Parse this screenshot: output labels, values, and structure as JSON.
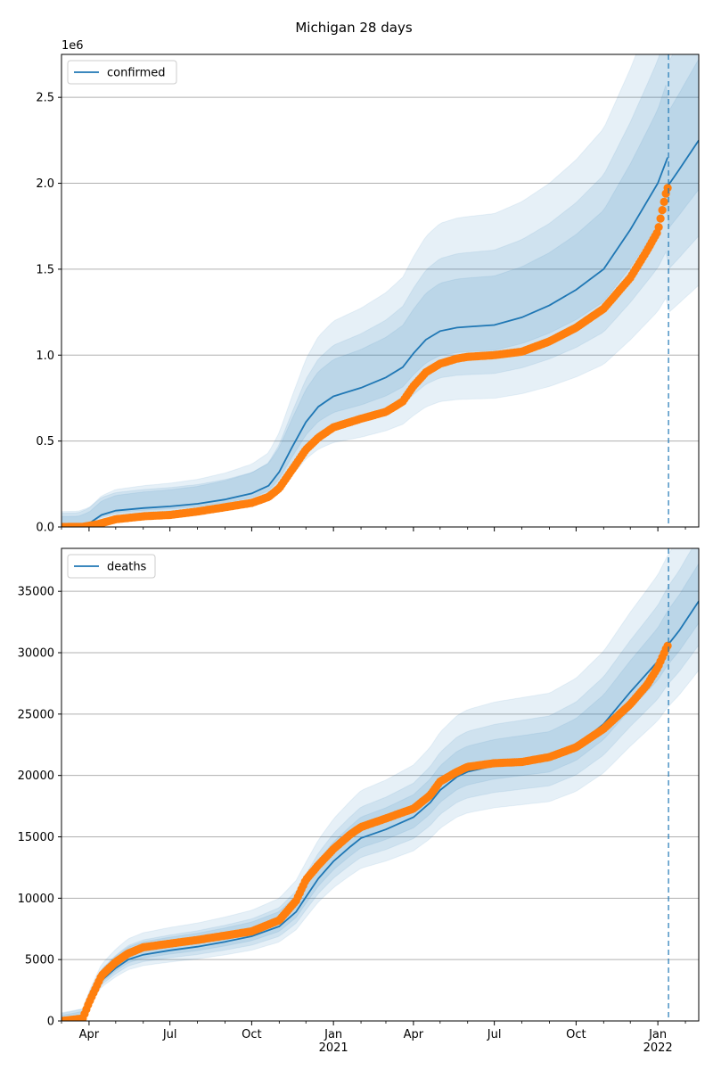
{
  "figure": {
    "title": "Michigan 28 days"
  },
  "chart_data": [
    {
      "type": "line",
      "legend": {
        "label": "confirmed",
        "placement": "top-left"
      },
      "y_multiplier_label": "1e6",
      "xlim": [
        "2020-03-01",
        "2022-02-16"
      ],
      "ylim": [
        0,
        2750000
      ],
      "yticks": [
        0.0,
        0.5,
        1.0,
        1.5,
        2.0,
        2.5
      ],
      "ytick_labels": [
        "0.0",
        "0.5",
        "1.0",
        "1.5",
        "2.0",
        "2.5"
      ],
      "xticks": [
        "2020-04-01",
        "2020-07-01",
        "2020-10-01",
        "2021-01-01",
        "2021-04-01",
        "2021-07-01",
        "2021-10-01",
        "2022-01-01"
      ],
      "grid": "y",
      "forecast_start": "2022-01-13",
      "colors": {
        "line": "#1f77b4",
        "points": "#ff7f0e",
        "band": "#1f77b4"
      },
      "model": {
        "x": [
          "2020-03-01",
          "2020-03-20",
          "2020-04-01",
          "2020-04-15",
          "2020-05-01",
          "2020-06-01",
          "2020-07-01",
          "2020-08-01",
          "2020-09-01",
          "2020-10-01",
          "2020-10-20",
          "2020-11-01",
          "2020-11-15",
          "2020-12-01",
          "2020-12-15",
          "2021-01-01",
          "2021-02-01",
          "2021-03-01",
          "2021-03-20",
          "2021-04-01",
          "2021-04-15",
          "2021-05-01",
          "2021-05-20",
          "2021-06-01",
          "2021-07-01",
          "2021-08-01",
          "2021-09-01",
          "2021-10-01",
          "2021-11-01",
          "2021-12-01",
          "2022-01-01",
          "2022-01-12"
        ],
        "y": [
          0,
          2000,
          20000,
          70000,
          95000,
          110000,
          120000,
          135000,
          160000,
          195000,
          240000,
          320000,
          460000,
          610000,
          700000,
          760000,
          810000,
          870000,
          930000,
          1010000,
          1090000,
          1140000,
          1160000,
          1165000,
          1175000,
          1220000,
          1290000,
          1380000,
          1500000,
          1730000,
          2000000,
          2150000
        ]
      },
      "forecast": {
        "x": [
          "2022-01-13",
          "2022-01-25",
          "2022-02-16"
        ],
        "y": [
          1990000,
          2080000,
          2250000
        ]
      },
      "bands": [
        {
          "offsets": [
            0.45,
            0.5
          ]
        },
        {
          "offsets": [
            0.3,
            0.33
          ]
        },
        {
          "offsets": [
            0.16,
            0.17
          ]
        }
      ],
      "observed": {
        "x": [
          "2020-03-01",
          "2020-03-25",
          "2020-04-10",
          "2020-05-01",
          "2020-06-01",
          "2020-07-01",
          "2020-08-01",
          "2020-09-01",
          "2020-10-01",
          "2020-10-20",
          "2020-11-01",
          "2020-11-15",
          "2020-12-01",
          "2020-12-15",
          "2021-01-01",
          "2021-02-01",
          "2021-03-01",
          "2021-03-20",
          "2021-04-01",
          "2021-04-15",
          "2021-05-01",
          "2021-05-20",
          "2021-06-01",
          "2021-07-01",
          "2021-08-01",
          "2021-09-01",
          "2021-10-01",
          "2021-11-01",
          "2021-12-01",
          "2021-12-20",
          "2022-01-01",
          "2022-01-05",
          "2022-01-10",
          "2022-01-13"
        ],
        "y": [
          0,
          1000,
          15000,
          45000,
          62000,
          70000,
          90000,
          115000,
          140000,
          175000,
          225000,
          330000,
          450000,
          520000,
          580000,
          630000,
          670000,
          730000,
          820000,
          900000,
          950000,
          980000,
          990000,
          1000000,
          1020000,
          1080000,
          1160000,
          1270000,
          1450000,
          1610000,
          1720000,
          1820000,
          1940000,
          1990000
        ]
      }
    },
    {
      "type": "line",
      "legend": {
        "label": "deaths",
        "placement": "top-left"
      },
      "xlim": [
        "2020-03-01",
        "2022-02-16"
      ],
      "ylim": [
        0,
        38500
      ],
      "yticks": [
        0,
        5000,
        10000,
        15000,
        20000,
        25000,
        30000,
        35000
      ],
      "ytick_labels": [
        "0",
        "5000",
        "10000",
        "15000",
        "20000",
        "25000",
        "30000",
        "35000"
      ],
      "xticks": [
        "2020-04-01",
        "2020-07-01",
        "2020-10-01",
        "2021-01-01",
        "2021-04-01",
        "2021-07-01",
        "2021-10-01",
        "2022-01-01"
      ],
      "xtick_labels": [
        [
          "Apr"
        ],
        [
          "Jul"
        ],
        [
          "Oct"
        ],
        [
          "Jan",
          "2021"
        ],
        [
          "Apr"
        ],
        [
          "Jul"
        ],
        [
          "Oct"
        ],
        [
          "Jan",
          "2022"
        ]
      ],
      "grid": "y",
      "forecast_start": "2022-01-13",
      "colors": {
        "line": "#1f77b4",
        "points": "#ff7f0e",
        "band": "#1f77b4"
      },
      "model": {
        "x": [
          "2020-03-01",
          "2020-03-25",
          "2020-04-01",
          "2020-04-15",
          "2020-05-01",
          "2020-05-15",
          "2020-06-01",
          "2020-07-01",
          "2020-08-01",
          "2020-09-01",
          "2020-10-01",
          "2020-11-01",
          "2020-11-20",
          "2020-12-01",
          "2020-12-15",
          "2021-01-01",
          "2021-01-20",
          "2021-02-01",
          "2021-03-01",
          "2021-04-01",
          "2021-04-20",
          "2021-05-01",
          "2021-05-20",
          "2021-06-01",
          "2021-07-01",
          "2021-08-01",
          "2021-09-01",
          "2021-10-01",
          "2021-11-01",
          "2021-12-01",
          "2022-01-01",
          "2022-01-12"
        ],
        "y": [
          0,
          300,
          1500,
          3300,
          4300,
          5000,
          5400,
          5750,
          6050,
          6450,
          6900,
          7700,
          8900,
          10100,
          11600,
          13000,
          14200,
          14900,
          15600,
          16600,
          17800,
          18800,
          19900,
          20300,
          20800,
          21100,
          21400,
          22400,
          24200,
          26800,
          29300,
          30600
        ]
      },
      "forecast": {
        "x": [
          "2022-01-13",
          "2022-01-25",
          "2022-02-16"
        ],
        "y": [
          30700,
          31800,
          34200
        ]
      },
      "bands": [
        {
          "offsets": [
            0.22,
            0.22
          ]
        },
        {
          "offsets": [
            0.14,
            0.14
          ]
        },
        {
          "offsets": [
            0.07,
            0.07
          ]
        }
      ],
      "observed": {
        "x": [
          "2020-03-01",
          "2020-03-25",
          "2020-04-01",
          "2020-04-15",
          "2020-05-01",
          "2020-05-15",
          "2020-06-01",
          "2020-07-01",
          "2020-08-01",
          "2020-09-01",
          "2020-10-01",
          "2020-11-01",
          "2020-11-20",
          "2020-12-01",
          "2020-12-15",
          "2021-01-01",
          "2021-01-20",
          "2021-02-01",
          "2021-03-01",
          "2021-04-01",
          "2021-04-20",
          "2021-05-01",
          "2021-05-20",
          "2021-06-01",
          "2021-07-01",
          "2021-08-01",
          "2021-09-01",
          "2021-10-01",
          "2021-11-01",
          "2021-12-01",
          "2021-12-20",
          "2022-01-01",
          "2022-01-10",
          "2022-01-13"
        ],
        "y": [
          0,
          200,
          1500,
          3700,
          4800,
          5500,
          6000,
          6300,
          6600,
          6950,
          7300,
          8200,
          9800,
          11500,
          12700,
          14000,
          15200,
          15800,
          16500,
          17300,
          18400,
          19500,
          20300,
          20700,
          21000,
          21100,
          21500,
          22300,
          23800,
          25800,
          27400,
          28800,
          30300,
          30700
        ]
      }
    }
  ]
}
